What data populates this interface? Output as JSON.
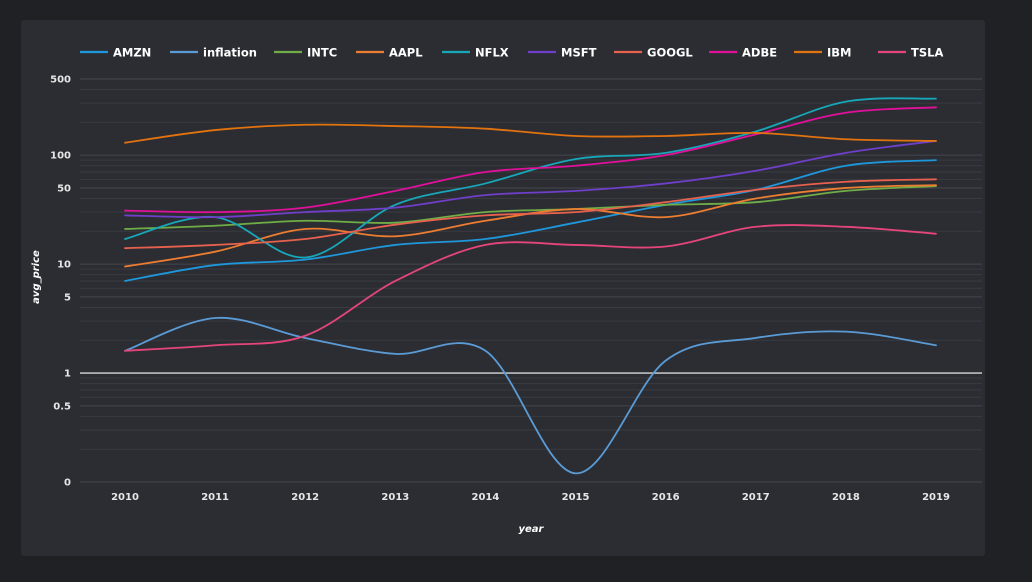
{
  "chart_data": {
    "type": "line",
    "title": "",
    "xlabel": "year",
    "ylabel": "avg_price",
    "y_scale": "log",
    "ylim": [
      0.1,
      500
    ],
    "y_ticks": [
      {
        "value": 500,
        "label": "500"
      },
      {
        "value": 100,
        "label": "100"
      },
      {
        "value": 50,
        "label": "50"
      },
      {
        "value": 10,
        "label": "10"
      },
      {
        "value": 5,
        "label": "5"
      },
      {
        "value": 1,
        "label": "1"
      },
      {
        "value": 0.5,
        "label": "0.5"
      },
      {
        "value": 0.1,
        "label": "0"
      }
    ],
    "grid": true,
    "reference_line": {
      "y": 1,
      "color": "#bfbfbf"
    },
    "legend_position": "top-left",
    "x": [
      2010,
      2011,
      2012,
      2013,
      2014,
      2015,
      2016,
      2017,
      2018,
      2019
    ],
    "series": [
      {
        "name": "AMZN",
        "color": "#1f97db",
        "values": [
          7,
          9.8,
          11,
          15,
          17,
          24,
          35,
          48,
          80,
          90
        ]
      },
      {
        "name": "inflation",
        "color": "#5b9bd5",
        "values": [
          1.6,
          3.2,
          2.1,
          1.5,
          1.6,
          0.12,
          1.3,
          2.1,
          2.4,
          1.8
        ]
      },
      {
        "name": "INTC",
        "color": "#70ad47",
        "values": [
          21,
          22.5,
          25,
          24,
          30,
          32,
          35,
          37,
          47,
          52
        ]
      },
      {
        "name": "AAPL",
        "color": "#ed7d31",
        "values": [
          9.5,
          13,
          21,
          18,
          25,
          32,
          27,
          40,
          50,
          53
        ]
      },
      {
        "name": "NFLX",
        "color": "#17a7b8",
        "values": [
          17,
          27,
          11.5,
          35,
          55,
          92,
          105,
          165,
          310,
          330
        ]
      },
      {
        "name": "MSFT",
        "color": "#6f3fc9",
        "values": [
          28,
          27,
          30,
          33,
          43,
          47,
          55,
          72,
          105,
          135
        ]
      },
      {
        "name": "GOOGL",
        "color": "#e7614e",
        "values": [
          14,
          15,
          17,
          23,
          28,
          30,
          37,
          48,
          57,
          60
        ]
      },
      {
        "name": "ADBE",
        "color": "#e0109a",
        "values": [
          31,
          30,
          33,
          47,
          70,
          80,
          100,
          155,
          245,
          275
        ]
      },
      {
        "name": "IBM",
        "color": "#e2730e",
        "values": [
          130,
          170,
          190,
          185,
          175,
          150,
          150,
          160,
          140,
          135
        ]
      },
      {
        "name": "TSLA",
        "color": "#e6457a",
        "values": [
          1.6,
          1.8,
          2.2,
          7,
          15,
          15,
          14.5,
          22,
          22,
          19
        ]
      }
    ]
  }
}
